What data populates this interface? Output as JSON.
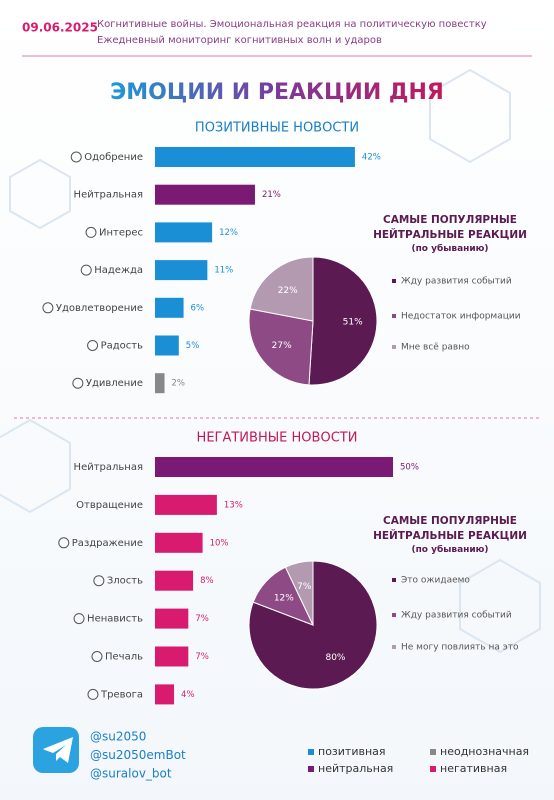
{
  "header": {
    "date": "09.06.2025",
    "line1": "Когнитивные войны. Эмоциональная реакция на политическую повестку",
    "line2": "Ежедневный мониторинг когнитивных волн и ударов"
  },
  "title": "ЭМОЦИИ И РЕАКЦИИ ДНЯ",
  "chart_data": [
    {
      "type": "bar",
      "orientation": "horizontal",
      "title": "ПОЗИТИВНЫЕ НОВОСТИ",
      "title_color": "#1a7fc6",
      "categories": [
        "Одобрение",
        "Нейтральная",
        "Интерес",
        "Надежда",
        "Удовлетворение",
        "Радость",
        "Удивление"
      ],
      "values": [
        42,
        21,
        12,
        11,
        6,
        5,
        2
      ],
      "value_labels": [
        "42%",
        "21%",
        "12%",
        "11%",
        "6%",
        "5%",
        "2%"
      ],
      "colors": [
        "#1a8fd6",
        "#7b1a74",
        "#1a8fd6",
        "#1a8fd6",
        "#1a8fd6",
        "#1a8fd6",
        "#888888"
      ],
      "xlim": [
        0,
        50
      ]
    },
    {
      "type": "pie",
      "title": "САМЫЕ ПОПУЛЯРНЫЕ\nНЕЙТРАЛЬНЫЕ РЕАКЦИИ",
      "subtitle": "(по убыванию)",
      "categories": [
        "Жду развития событий",
        "Недостаток информации",
        "Мне всё равно"
      ],
      "values": [
        51,
        27,
        22
      ],
      "value_labels": [
        "51%",
        "27%",
        "22%"
      ],
      "colors": [
        "#5c1a52",
        "#8e4a84",
        "#b39ab0"
      ]
    },
    {
      "type": "bar",
      "orientation": "horizontal",
      "title": "НЕГАТИВНЫЕ НОВОСТИ",
      "title_color": "#c2185b",
      "categories": [
        "Нейтральная",
        "Отвращение",
        "Раздражение",
        "Злость",
        "Ненависть",
        "Печаль",
        "Тревога"
      ],
      "values": [
        50,
        13,
        10,
        8,
        7,
        7,
        4
      ],
      "value_labels": [
        "50%",
        "13%",
        "10%",
        "8%",
        "7%",
        "7%",
        "4%"
      ],
      "colors": [
        "#7b1a74",
        "#d81b6f",
        "#d81b6f",
        "#d81b6f",
        "#d81b6f",
        "#d81b6f",
        "#d81b6f"
      ],
      "xlim": [
        0,
        50
      ]
    },
    {
      "type": "pie",
      "title": "САМЫЕ ПОПУЛЯРНЫЕ\nНЕЙТРАЛЬНЫЕ РЕАКЦИИ",
      "subtitle": "(по убыванию)",
      "categories": [
        "Это ожидаемо",
        "Жду развития событий",
        "Не могу повлиять на это"
      ],
      "values": [
        80,
        12,
        7
      ],
      "value_labels": [
        "80%",
        "12%",
        "7%"
      ],
      "colors": [
        "#5c1a52",
        "#8e4a84",
        "#b39ab0"
      ]
    }
  ],
  "contacts": [
    "@su2050",
    "@su2050emBot",
    "@suralov_bot"
  ],
  "legend": [
    {
      "name": "позитивная",
      "color": "#1a8fd6"
    },
    {
      "name": "неоднозначная",
      "color": "#888888"
    },
    {
      "name": "нейтральная",
      "color": "#7b1a74"
    },
    {
      "name": "негативная",
      "color": "#d81b6f"
    }
  ]
}
